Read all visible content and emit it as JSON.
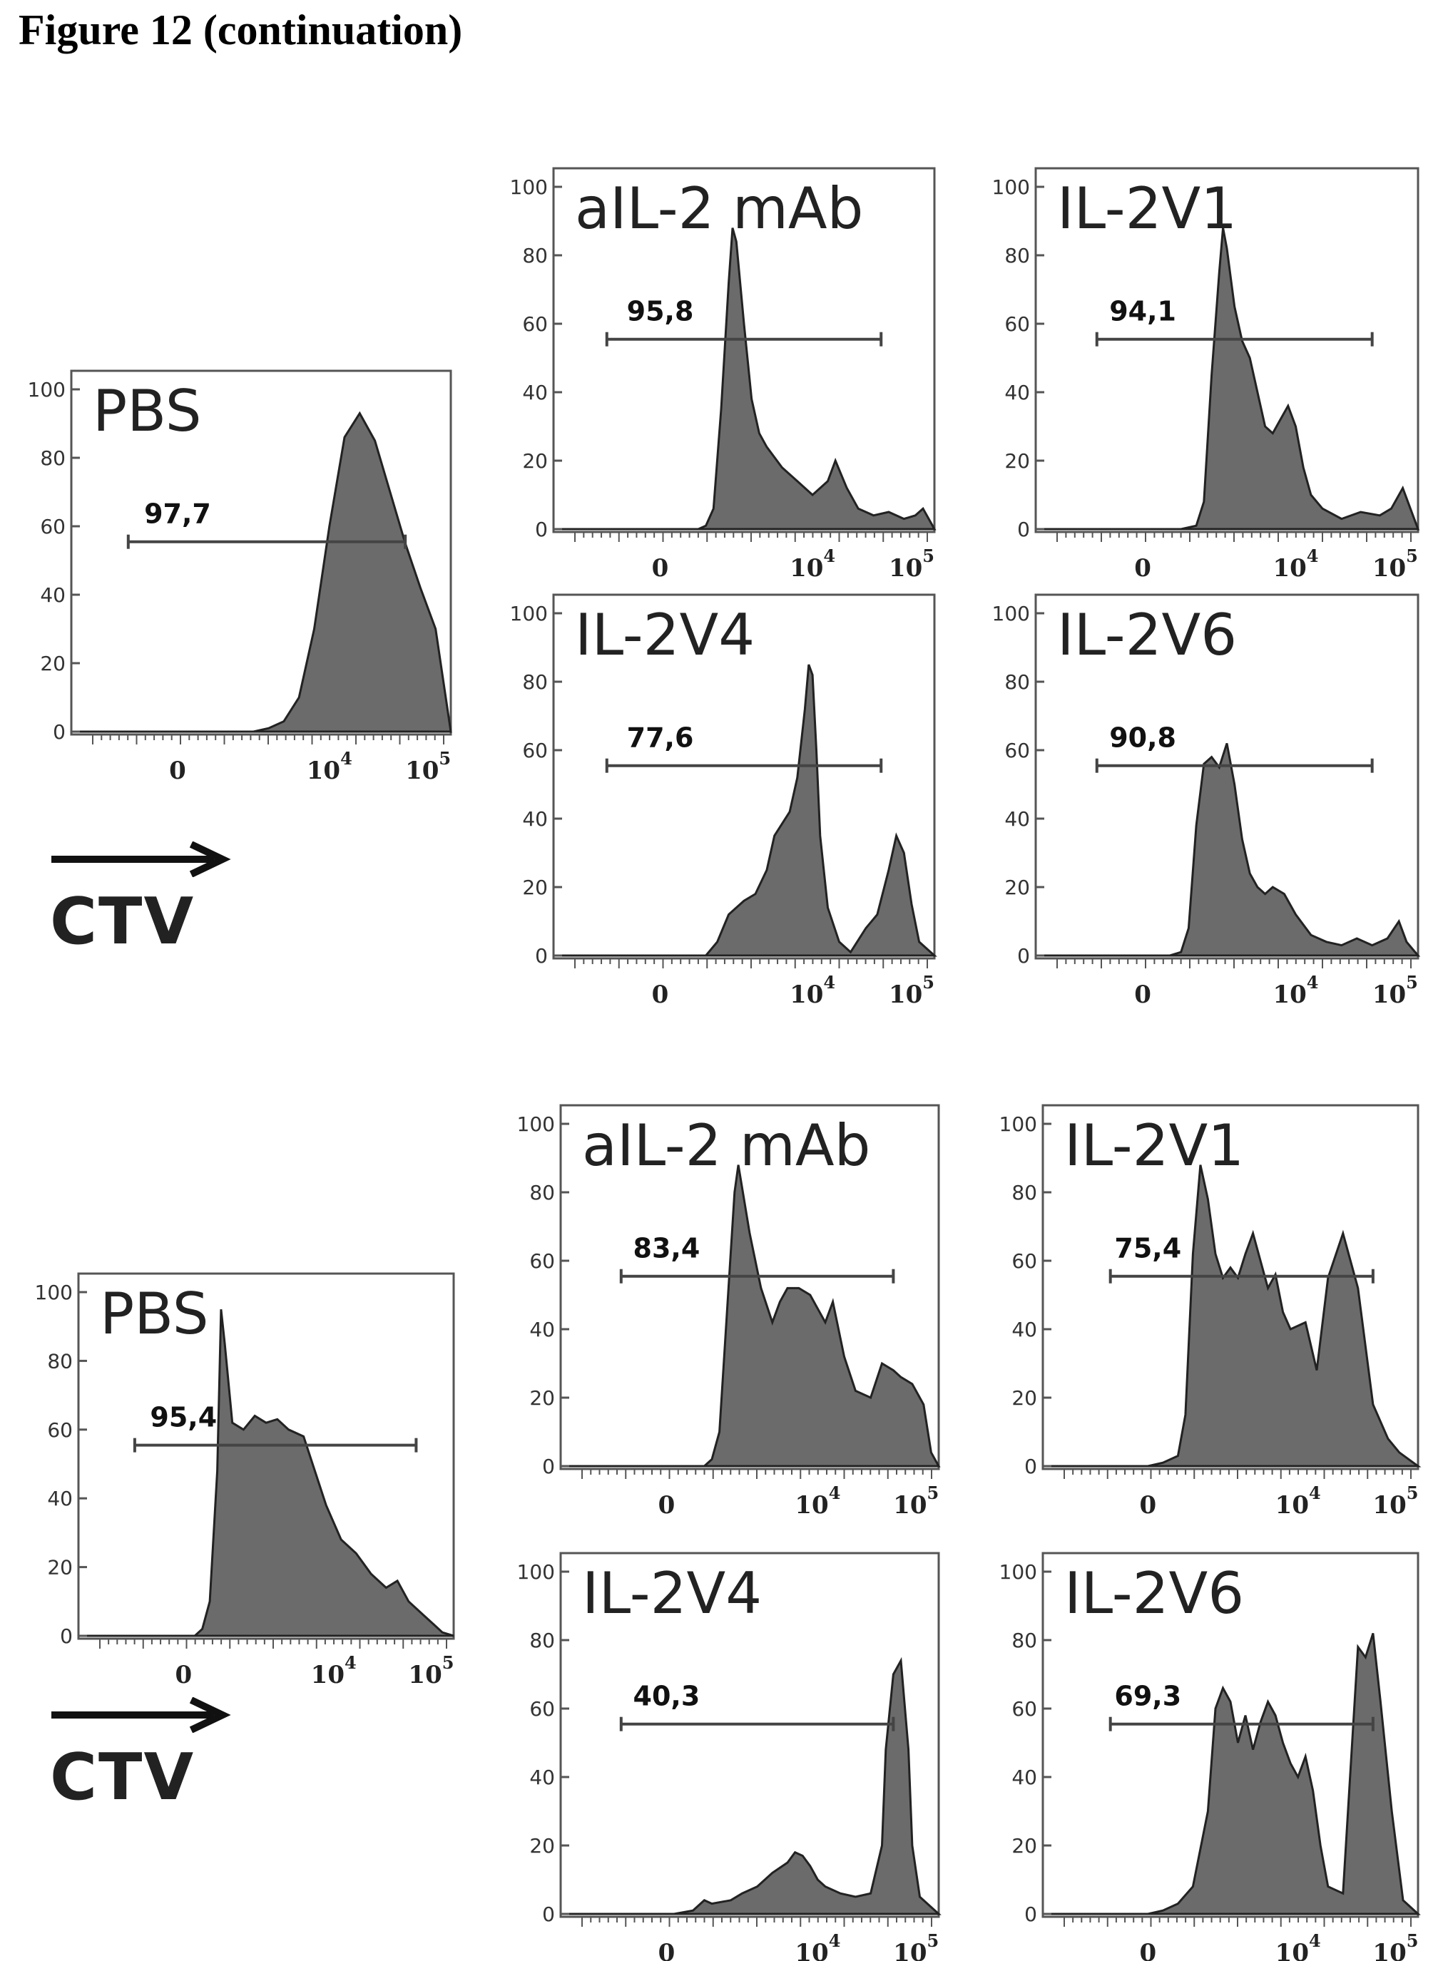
{
  "title": "Figure 12 (continuation)",
  "axis_label": "CTV",
  "colors": {
    "fill": "#6b6b6b",
    "stroke": "#222222",
    "gate": "#444444",
    "frame": "#555555"
  },
  "chart_data": [
    {
      "type": "area",
      "panel_label": "PBS",
      "gate_value": "97,7",
      "ylim": [
        0,
        100
      ],
      "yticks": [
        "0",
        "20",
        "40",
        "60",
        "80",
        "100"
      ],
      "xticks": [
        "0",
        "10",
        "10"
      ],
      "xtick_sup": [
        "",
        "4",
        "5"
      ],
      "x": [
        0,
        0.02,
        0.05,
        0.1,
        0.14,
        0.18,
        0.22,
        0.26,
        0.3,
        0.33,
        0.36,
        0.39,
        0.42,
        0.45,
        0.48,
        0.52,
        0.56,
        0.6,
        0.64,
        0.68,
        0.72,
        0.76,
        0.8,
        0.84,
        0.88,
        0.92,
        0.96,
        1
      ],
      "y": [
        0,
        0,
        0,
        0,
        0,
        0,
        0,
        0,
        0,
        0,
        0,
        0,
        0,
        0,
        0,
        1,
        3,
        10,
        30,
        60,
        86,
        93,
        85,
        70,
        55,
        42,
        30,
        0
      ]
    },
    {
      "type": "area",
      "panel_label": "aIL-2 mAb",
      "gate_value": "95,8",
      "ylim": [
        0,
        100
      ],
      "yticks": [
        "0",
        "20",
        "40",
        "60",
        "80",
        "100"
      ],
      "xticks": [
        "0",
        "10",
        "10"
      ],
      "xtick_sup": [
        "",
        "4",
        "5"
      ],
      "x": [
        0,
        0.3,
        0.38,
        0.4,
        0.42,
        0.44,
        0.46,
        0.47,
        0.48,
        0.5,
        0.52,
        0.54,
        0.56,
        0.6,
        0.64,
        0.68,
        0.72,
        0.74,
        0.77,
        0.8,
        0.84,
        0.88,
        0.92,
        0.95,
        0.97,
        0.99,
        1
      ],
      "y": [
        0,
        0,
        0,
        1,
        6,
        35,
        72,
        88,
        84,
        60,
        38,
        28,
        24,
        18,
        14,
        10,
        14,
        20,
        12,
        6,
        4,
        5,
        3,
        4,
        6,
        2,
        0
      ]
    },
    {
      "type": "area",
      "panel_label": "IL-2V1",
      "gate_value": "94,1",
      "ylim": [
        0,
        100
      ],
      "yticks": [
        "0",
        "20",
        "40",
        "60",
        "80",
        "100"
      ],
      "xticks": [
        "0",
        "10",
        "10"
      ],
      "xtick_sup": [
        "",
        "4",
        "5"
      ],
      "x": [
        0,
        0.38,
        0.42,
        0.44,
        0.46,
        0.48,
        0.49,
        0.5,
        0.52,
        0.54,
        0.56,
        0.58,
        0.6,
        0.62,
        0.64,
        0.66,
        0.68,
        0.7,
        0.72,
        0.75,
        0.8,
        0.85,
        0.9,
        0.93,
        0.96,
        0.98,
        1
      ],
      "y": [
        0,
        0,
        1,
        8,
        45,
        75,
        88,
        82,
        65,
        55,
        50,
        40,
        30,
        28,
        32,
        36,
        30,
        18,
        10,
        6,
        3,
        5,
        4,
        6,
        12,
        6,
        0
      ]
    },
    {
      "type": "area",
      "panel_label": "IL-2V4",
      "gate_value": "77,6",
      "ylim": [
        0,
        100
      ],
      "yticks": [
        "0",
        "20",
        "40",
        "60",
        "80",
        "100"
      ],
      "xticks": [
        "0",
        "10",
        "10"
      ],
      "xtick_sup": [
        "",
        "4",
        "5"
      ],
      "x": [
        0,
        0.38,
        0.4,
        0.43,
        0.46,
        0.5,
        0.53,
        0.56,
        0.58,
        0.62,
        0.64,
        0.66,
        0.67,
        0.68,
        0.69,
        0.7,
        0.72,
        0.75,
        0.78,
        0.82,
        0.85,
        0.88,
        0.9,
        0.92,
        0.94,
        0.96,
        1
      ],
      "y": [
        0,
        0,
        0,
        4,
        12,
        16,
        18,
        25,
        35,
        42,
        52,
        72,
        85,
        82,
        60,
        35,
        14,
        4,
        1,
        8,
        12,
        25,
        35,
        30,
        15,
        4,
        0
      ]
    },
    {
      "type": "area",
      "panel_label": "IL-2V6",
      "gate_value": "90,8",
      "ylim": [
        0,
        100
      ],
      "yticks": [
        "0",
        "20",
        "40",
        "60",
        "80",
        "100"
      ],
      "xticks": [
        "0",
        "10",
        "10"
      ],
      "xtick_sup": [
        "",
        "4",
        "5"
      ],
      "x": [
        0,
        0.35,
        0.38,
        0.4,
        0.42,
        0.44,
        0.46,
        0.48,
        0.5,
        0.52,
        0.54,
        0.56,
        0.58,
        0.6,
        0.62,
        0.65,
        0.68,
        0.72,
        0.76,
        0.8,
        0.84,
        0.88,
        0.92,
        0.95,
        0.97,
        1
      ],
      "y": [
        0,
        0,
        1,
        8,
        38,
        56,
        58,
        55,
        62,
        50,
        34,
        24,
        20,
        18,
        20,
        18,
        12,
        6,
        4,
        3,
        5,
        3,
        5,
        10,
        4,
        0
      ]
    },
    {
      "type": "area",
      "panel_label": "PBS",
      "gate_value": "95,4",
      "ylim": [
        0,
        100
      ],
      "yticks": [
        "0",
        "20",
        "40",
        "60",
        "80",
        "100"
      ],
      "xticks": [
        "0",
        "10",
        "10"
      ],
      "xtick_sup": [
        "",
        "4",
        "5"
      ],
      "x": [
        0,
        0.28,
        0.31,
        0.33,
        0.35,
        0.37,
        0.38,
        0.39,
        0.41,
        0.44,
        0.47,
        0.5,
        0.53,
        0.56,
        0.6,
        0.63,
        0.66,
        0.7,
        0.74,
        0.78,
        0.82,
        0.85,
        0.88,
        0.92,
        0.95,
        0.97,
        1
      ],
      "y": [
        0,
        0,
        0,
        2,
        10,
        48,
        95,
        85,
        62,
        60,
        64,
        62,
        63,
        60,
        58,
        48,
        38,
        28,
        24,
        18,
        14,
        16,
        10,
        6,
        3,
        1,
        0
      ]
    },
    {
      "type": "area",
      "panel_label": "aIL-2 mAb",
      "gate_value": "83,4",
      "ylim": [
        0,
        100
      ],
      "yticks": [
        "0",
        "20",
        "40",
        "60",
        "80",
        "100"
      ],
      "xticks": [
        "0",
        "10",
        "10"
      ],
      "xtick_sup": [
        "",
        "4",
        "5"
      ],
      "x": [
        0,
        0.34,
        0.38,
        0.4,
        0.42,
        0.44,
        0.46,
        0.47,
        0.5,
        0.53,
        0.56,
        0.58,
        0.6,
        0.63,
        0.66,
        0.7,
        0.72,
        0.75,
        0.78,
        0.82,
        0.85,
        0.88,
        0.9,
        0.93,
        0.96,
        0.98,
        1
      ],
      "y": [
        0,
        0,
        0,
        2,
        10,
        45,
        80,
        88,
        68,
        52,
        42,
        48,
        52,
        52,
        50,
        42,
        48,
        32,
        22,
        20,
        30,
        28,
        26,
        24,
        18,
        4,
        0
      ]
    },
    {
      "type": "area",
      "panel_label": "IL-2V1",
      "gate_value": "75,4",
      "ylim": [
        0,
        100
      ],
      "yticks": [
        "0",
        "20",
        "40",
        "60",
        "80",
        "100"
      ],
      "xticks": [
        "0",
        "10",
        "10"
      ],
      "xtick_sup": [
        "",
        "4",
        "5"
      ],
      "x": [
        0,
        0.28,
        0.32,
        0.36,
        0.38,
        0.4,
        0.42,
        0.44,
        0.46,
        0.48,
        0.5,
        0.52,
        0.54,
        0.56,
        0.58,
        0.6,
        0.62,
        0.64,
        0.66,
        0.7,
        0.73,
        0.76,
        0.8,
        0.84,
        0.88,
        0.92,
        0.95,
        1
      ],
      "y": [
        0,
        0,
        1,
        3,
        15,
        62,
        88,
        78,
        62,
        55,
        58,
        55,
        62,
        68,
        60,
        52,
        56,
        45,
        40,
        42,
        28,
        55,
        68,
        52,
        18,
        8,
        4,
        0
      ]
    },
    {
      "type": "area",
      "panel_label": "IL-2V4",
      "gate_value": "40,3",
      "ylim": [
        0,
        100
      ],
      "yticks": [
        "0",
        "20",
        "40",
        "60",
        "80",
        "100"
      ],
      "xticks": [
        "0",
        "10",
        "10"
      ],
      "xtick_sup": [
        "",
        "4",
        "5"
      ],
      "x": [
        0,
        0.3,
        0.35,
        0.38,
        0.4,
        0.45,
        0.48,
        0.52,
        0.56,
        0.6,
        0.62,
        0.64,
        0.66,
        0.68,
        0.7,
        0.74,
        0.78,
        0.82,
        0.85,
        0.86,
        0.88,
        0.9,
        0.92,
        0.93,
        0.95,
        1
      ],
      "y": [
        0,
        0,
        1,
        4,
        3,
        4,
        6,
        8,
        12,
        15,
        18,
        17,
        14,
        10,
        8,
        6,
        5,
        6,
        20,
        48,
        70,
        74,
        48,
        20,
        5,
        0
      ]
    },
    {
      "type": "area",
      "panel_label": "IL-2V6",
      "gate_value": "69,3",
      "ylim": [
        0,
        100
      ],
      "yticks": [
        "0",
        "20",
        "40",
        "60",
        "80",
        "100"
      ],
      "xticks": [
        "0",
        "10",
        "10"
      ],
      "xtick_sup": [
        "",
        "4",
        "5"
      ],
      "x": [
        0,
        0.28,
        0.32,
        0.36,
        0.4,
        0.44,
        0.46,
        0.48,
        0.5,
        0.52,
        0.54,
        0.56,
        0.58,
        0.6,
        0.62,
        0.64,
        0.66,
        0.68,
        0.7,
        0.72,
        0.74,
        0.76,
        0.8,
        0.84,
        0.86,
        0.88,
        0.9,
        0.93,
        0.96,
        1
      ],
      "y": [
        0,
        0,
        1,
        3,
        8,
        30,
        60,
        66,
        62,
        50,
        58,
        48,
        56,
        62,
        58,
        50,
        44,
        40,
        46,
        36,
        20,
        8,
        6,
        78,
        75,
        82,
        62,
        30,
        4,
        0
      ]
    }
  ]
}
